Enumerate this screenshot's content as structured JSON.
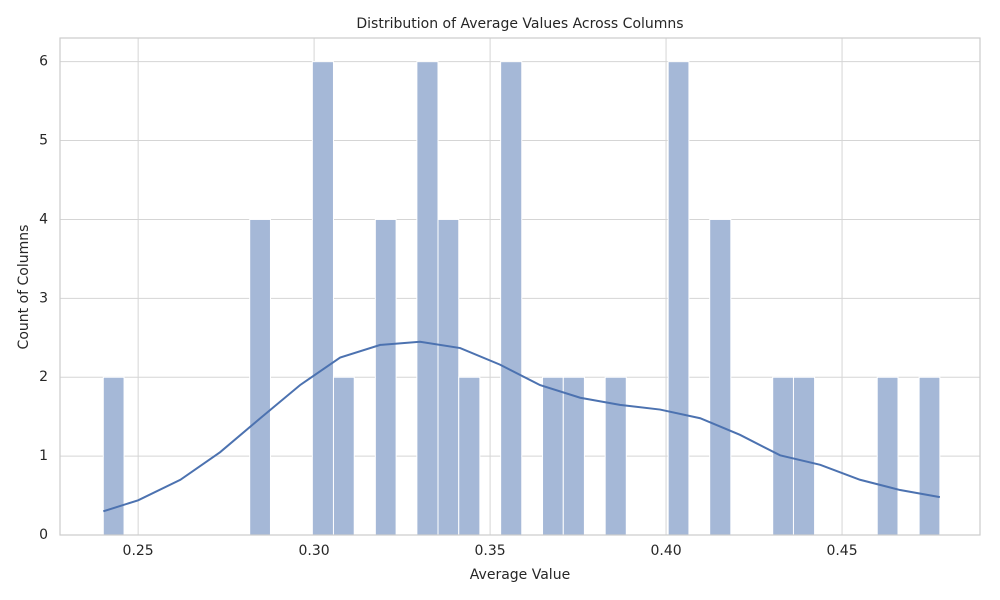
{
  "chart_data": {
    "type": "histogram",
    "title": "Distribution of Average Values Across Columns",
    "x_label": "Average Value",
    "y_label": "Count of Columns",
    "bins": [
      0.2401,
      0.246,
      0.252,
      0.2579,
      0.2639,
      0.2698,
      0.2758,
      0.2817,
      0.2876,
      0.2936,
      0.2995,
      0.3055,
      0.3114,
      0.3174,
      0.3233,
      0.3292,
      0.3352,
      0.3411,
      0.3471,
      0.353,
      0.359,
      0.3649,
      0.3708,
      0.3768,
      0.3827,
      0.3887,
      0.3946,
      0.4006,
      0.4065,
      0.4124,
      0.4184,
      0.4243,
      0.4303,
      0.4362,
      0.4422,
      0.4481,
      0.454,
      0.46,
      0.4659,
      0.4719,
      0.4778
    ],
    "counts": [
      2,
      0,
      0,
      0,
      0,
      0,
      0,
      4,
      0,
      0,
      6,
      2,
      0,
      4,
      0,
      6,
      4,
      2,
      0,
      6,
      0,
      2,
      2,
      0,
      2,
      0,
      0,
      6,
      0,
      4,
      0,
      0,
      2,
      2,
      0,
      0,
      0,
      2,
      0,
      2
    ],
    "color": "#a5b8d7",
    "kde": {
      "color": "#4c72b0",
      "x": [
        0.2401,
        0.25,
        0.262,
        0.2733,
        0.2847,
        0.296,
        0.3074,
        0.3188,
        0.3301,
        0.3415,
        0.3528,
        0.3642,
        0.3756,
        0.3869,
        0.3983,
        0.4097,
        0.421,
        0.4324,
        0.4438,
        0.4551,
        0.4665,
        0.4778
      ],
      "y": [
        0.3,
        0.44,
        0.7,
        1.05,
        1.48,
        1.9,
        2.25,
        2.41,
        2.45,
        2.37,
        2.16,
        1.9,
        1.74,
        1.65,
        1.59,
        1.48,
        1.27,
        1.01,
        0.89,
        0.7,
        0.57,
        0.48
      ]
    },
    "xlim": [
      0.2278,
      0.4892
    ],
    "ylim": [
      0,
      6.3
    ],
    "xticks": [
      0.25,
      {
        "value": 0.3,
        "label": "0.30"
      },
      0.35,
      {
        "value": 0.4,
        "label": "0.40"
      },
      0.45
    ],
    "yticks": [
      0,
      1,
      2,
      3,
      4,
      5,
      6
    ],
    "grid": true
  }
}
